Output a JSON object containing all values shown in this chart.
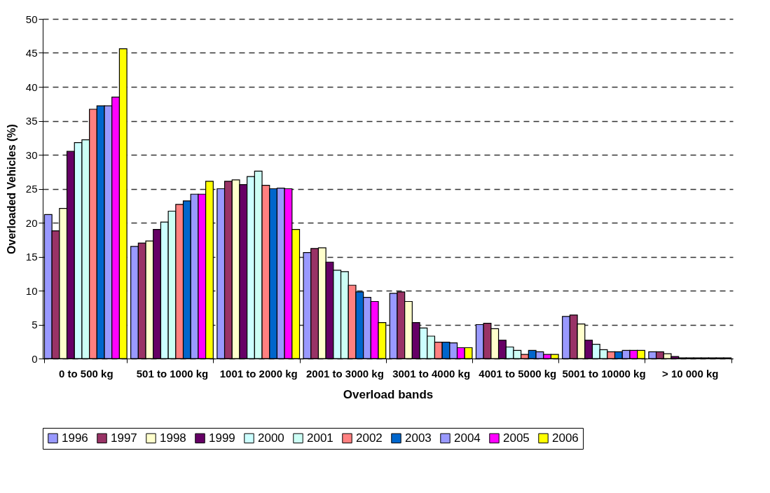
{
  "chart_data": {
    "type": "bar",
    "xlabel": "Overload bands",
    "ylabel": "Overloaded Vehicles (%)",
    "categories": [
      "0 to 500 kg",
      "501 to\n1000 kg",
      "1001 to\n2000 kg",
      "2001 to\n3000 kg",
      "3001 to\n4000 kg",
      "4001 to\n5000 kg",
      "5001 to\n10000 kg",
      "> 10 000\nkg"
    ],
    "series": [
      {
        "name": "1996",
        "color": "#9999ff",
        "values": [
          21.2,
          16.5,
          25.0,
          15.6,
          9.6,
          5.0,
          6.2,
          1.0
        ]
      },
      {
        "name": "1997",
        "color": "#993366",
        "values": [
          18.8,
          17.0,
          26.1,
          16.2,
          9.8,
          5.2,
          6.4,
          1.0
        ]
      },
      {
        "name": "1998",
        "color": "#ffffcc",
        "values": [
          22.1,
          17.3,
          26.3,
          16.3,
          8.4,
          4.4,
          5.1,
          0.7
        ]
      },
      {
        "name": "1999",
        "color": "#660066",
        "values": [
          30.5,
          19.0,
          25.6,
          14.2,
          5.3,
          2.7,
          2.7,
          0.3
        ]
      },
      {
        "name": "2000",
        "color": "#ccffff",
        "values": [
          31.8,
          20.1,
          26.8,
          13.0,
          4.5,
          1.7,
          2.1,
          0.1
        ]
      },
      {
        "name": "2001",
        "color": "#ccfff5",
        "values": [
          32.2,
          21.7,
          27.6,
          12.8,
          3.3,
          1.2,
          1.3,
          0.1
        ]
      },
      {
        "name": "2002",
        "color": "#ff8080",
        "values": [
          36.7,
          22.7,
          25.5,
          10.8,
          2.4,
          0.6,
          1.0,
          0.1
        ]
      },
      {
        "name": "2003",
        "color": "#0066cc",
        "values": [
          37.2,
          23.2,
          25.0,
          9.8,
          2.4,
          1.2,
          1.0,
          0.1
        ]
      },
      {
        "name": "2004",
        "color": "#9999ff",
        "values": [
          37.2,
          24.2,
          25.1,
          9.0,
          2.3,
          1.0,
          1.2,
          0.1
        ]
      },
      {
        "name": "2005",
        "color": "#ff00ff",
        "values": [
          38.5,
          24.2,
          25.0,
          8.4,
          1.6,
          0.6,
          1.2,
          0.1
        ]
      },
      {
        "name": "2006",
        "color": "#ffff00",
        "values": [
          45.6,
          26.1,
          19.0,
          5.3,
          1.6,
          0.6,
          1.2,
          0.1
        ]
      }
    ],
    "ylim": [
      0,
      50
    ],
    "yticks": [
      0,
      5,
      10,
      15,
      20,
      25,
      30,
      35,
      40,
      45,
      50
    ],
    "grid": "y",
    "legend": "bottom"
  }
}
